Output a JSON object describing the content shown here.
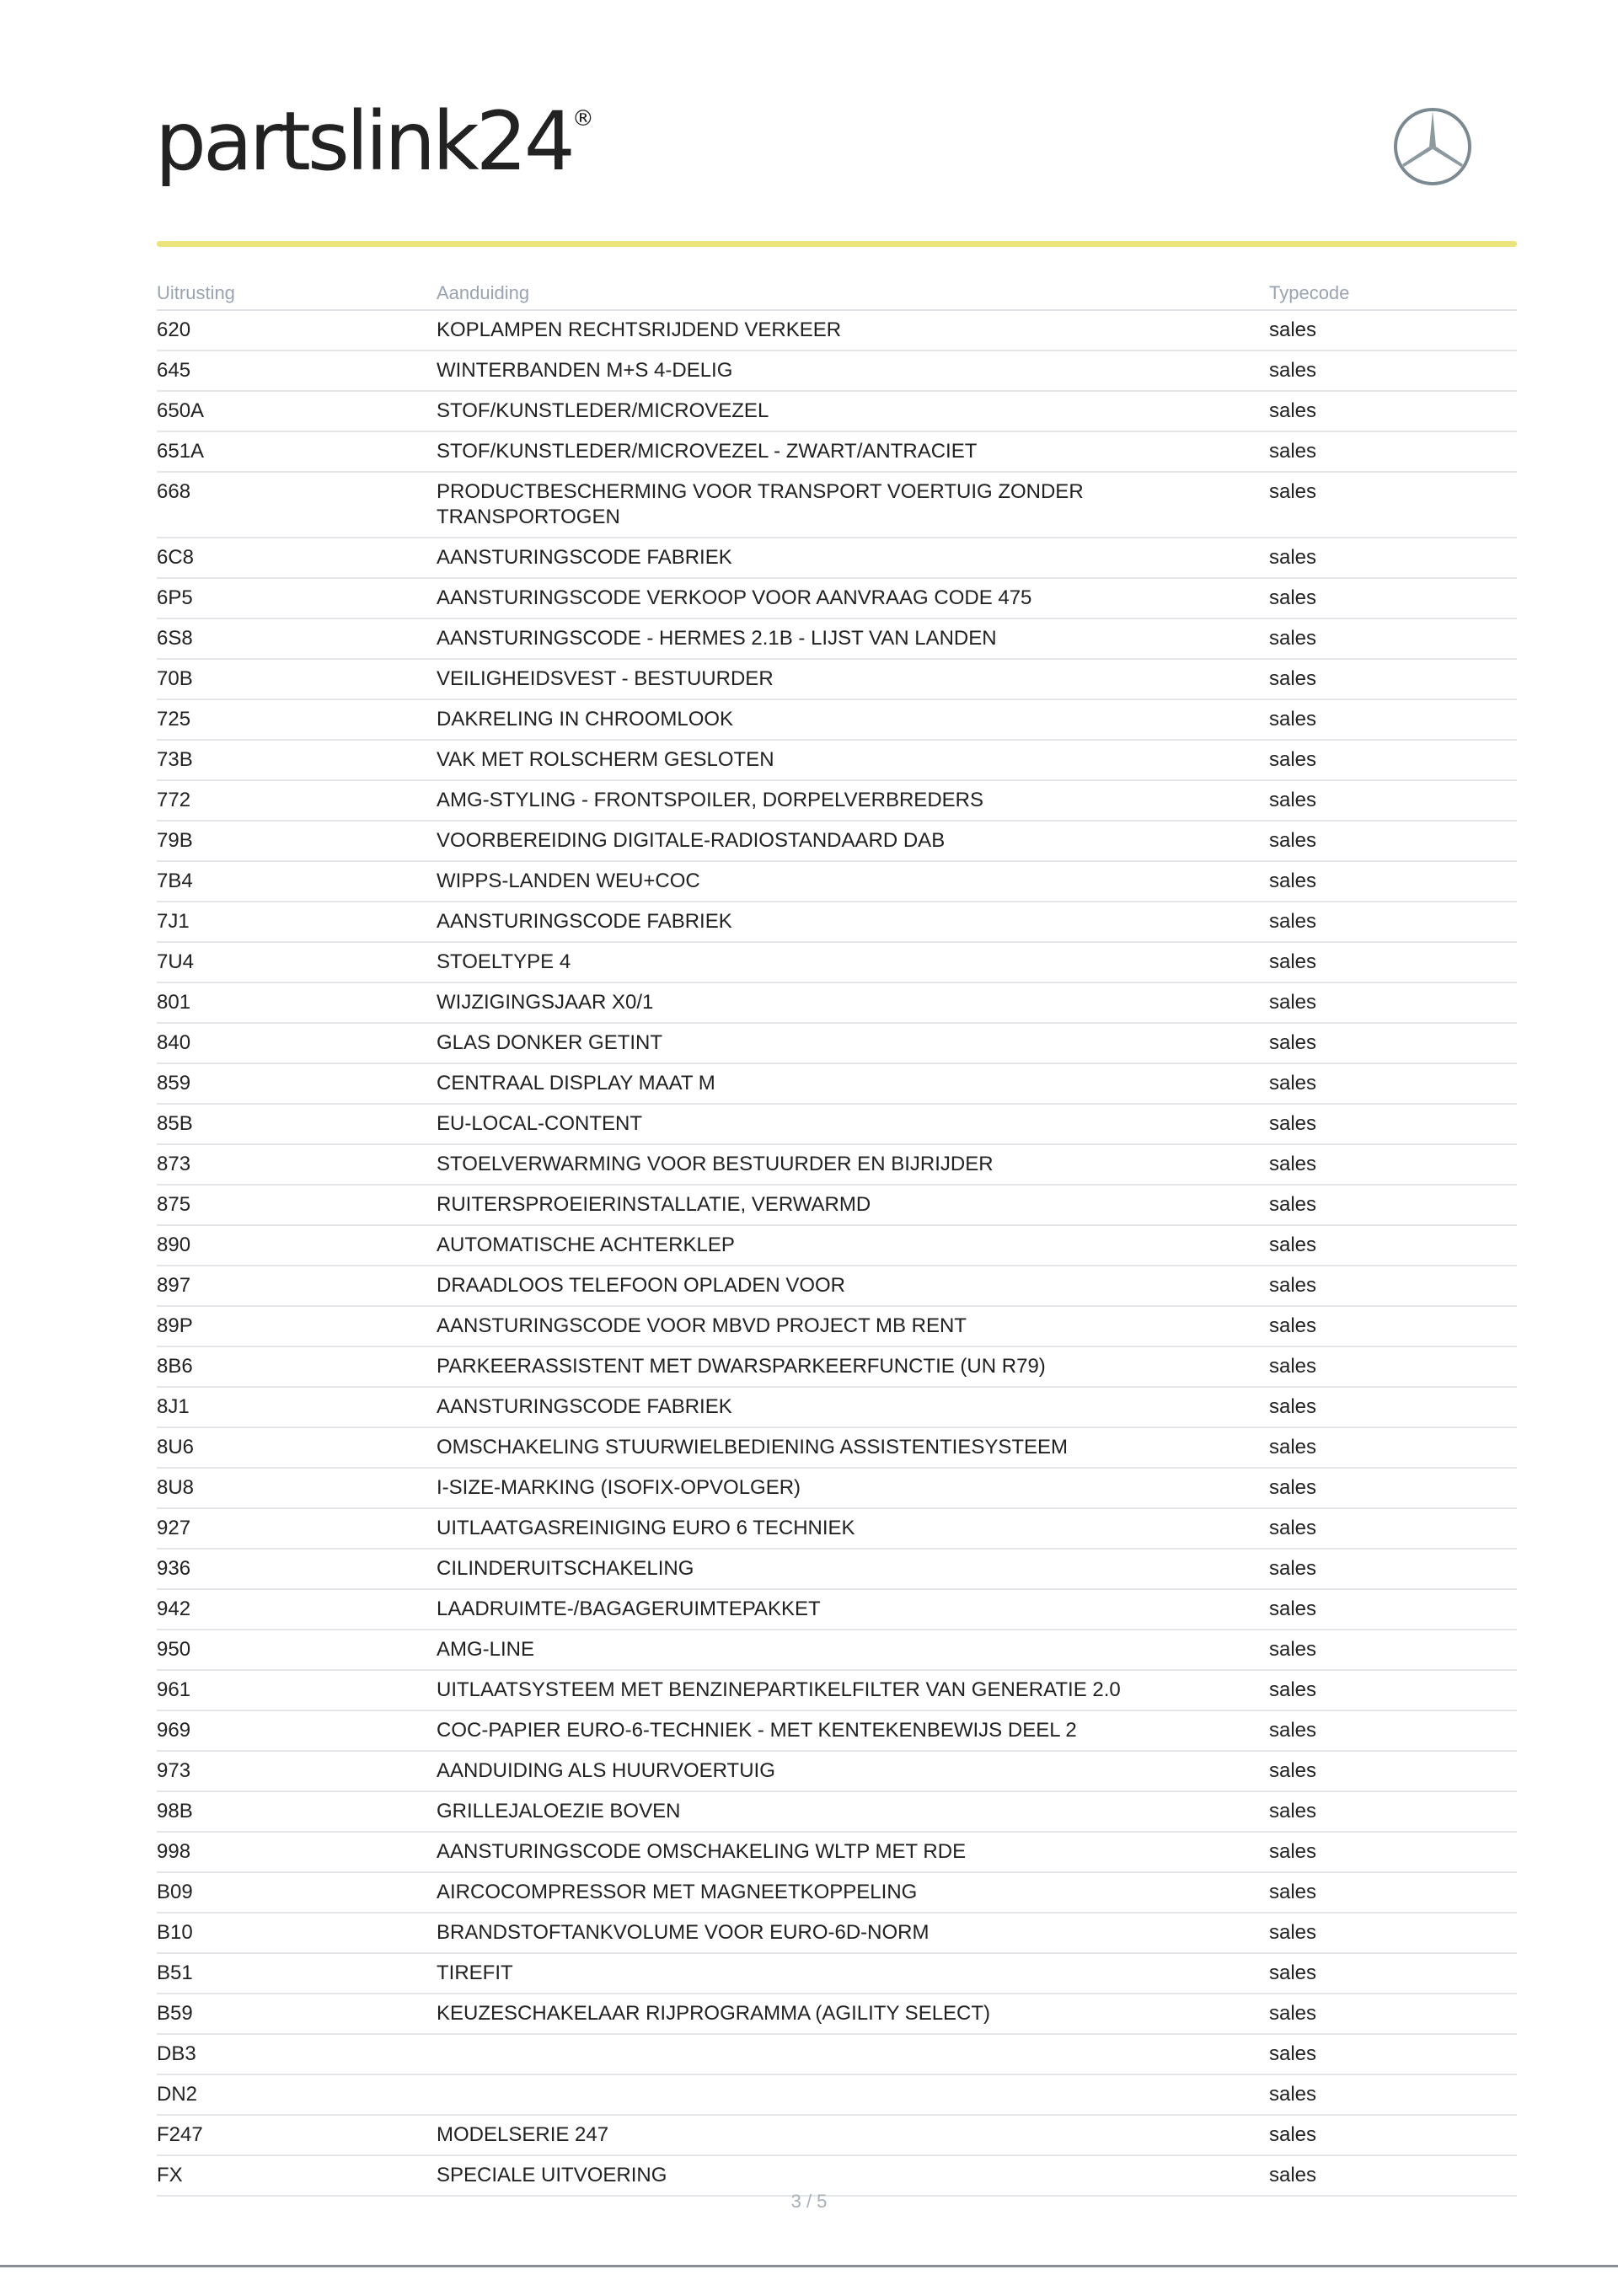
{
  "header": {
    "logo_text": "partslink24",
    "logo_registered": "®",
    "brand_icon": "mercedes-star-icon",
    "accent_color": "#ebe47a"
  },
  "table": {
    "columns": [
      "Uitrusting",
      "Aanduiding",
      "Typecode"
    ],
    "rows": [
      {
        "code": "620",
        "desc": "KOPLAMPEN RECHTSRIJDEND VERKEER",
        "type": "sales"
      },
      {
        "code": "645",
        "desc": "WINTERBANDEN M+S 4-DELIG",
        "type": "sales"
      },
      {
        "code": "650A",
        "desc": "STOF/KUNSTLEDER/MICROVEZEL",
        "type": "sales"
      },
      {
        "code": "651A",
        "desc": "STOF/KUNSTLEDER/MICROVEZEL - ZWART/ANTRACIET",
        "type": "sales"
      },
      {
        "code": "668",
        "desc": "PRODUCTBESCHERMING VOOR TRANSPORT VOERTUIG ZONDER TRANSPORTOGEN",
        "type": "sales"
      },
      {
        "code": "6C8",
        "desc": "AANSTURINGSCODE FABRIEK",
        "type": "sales"
      },
      {
        "code": "6P5",
        "desc": "AANSTURINGSCODE VERKOOP VOOR AANVRAAG CODE 475",
        "type": "sales"
      },
      {
        "code": "6S8",
        "desc": "AANSTURINGSCODE - HERMES 2.1B - LIJST VAN LANDEN",
        "type": "sales"
      },
      {
        "code": "70B",
        "desc": "VEILIGHEIDSVEST - BESTUURDER",
        "type": "sales"
      },
      {
        "code": "725",
        "desc": "DAKRELING IN CHROOMLOOK",
        "type": "sales"
      },
      {
        "code": "73B",
        "desc": "VAK MET ROLSCHERM GESLOTEN",
        "type": "sales"
      },
      {
        "code": "772",
        "desc": "AMG-STYLING - FRONTSPOILER, DORPELVERBREDERS",
        "type": "sales"
      },
      {
        "code": "79B",
        "desc": "VOORBEREIDING DIGITALE-RADIOSTANDAARD DAB",
        "type": "sales"
      },
      {
        "code": "7B4",
        "desc": "WIPPS-LANDEN WEU+COC",
        "type": "sales"
      },
      {
        "code": "7J1",
        "desc": "AANSTURINGSCODE FABRIEK",
        "type": "sales"
      },
      {
        "code": "7U4",
        "desc": "STOELTYPE 4",
        "type": "sales"
      },
      {
        "code": "801",
        "desc": "WIJZIGINGSJAAR X0/1",
        "type": "sales"
      },
      {
        "code": "840",
        "desc": "GLAS DONKER GETINT",
        "type": "sales"
      },
      {
        "code": "859",
        "desc": "CENTRAAL DISPLAY MAAT M",
        "type": "sales"
      },
      {
        "code": "85B",
        "desc": "EU-LOCAL-CONTENT",
        "type": "sales"
      },
      {
        "code": "873",
        "desc": "STOELVERWARMING VOOR BESTUURDER EN BIJRIJDER",
        "type": "sales"
      },
      {
        "code": "875",
        "desc": "RUITERSPROEIERINSTALLATIE, VERWARMD",
        "type": "sales"
      },
      {
        "code": "890",
        "desc": "AUTOMATISCHE ACHTERKLEP",
        "type": "sales"
      },
      {
        "code": "897",
        "desc": "DRAADLOOS TELEFOON OPLADEN VOOR",
        "type": "sales"
      },
      {
        "code": "89P",
        "desc": "AANSTURINGSCODE VOOR MBVD PROJECT MB RENT",
        "type": "sales"
      },
      {
        "code": "8B6",
        "desc": "PARKEERASSISTENT MET DWARSPARKEERFUNCTIE (UN R79)",
        "type": "sales"
      },
      {
        "code": "8J1",
        "desc": "AANSTURINGSCODE FABRIEK",
        "type": "sales"
      },
      {
        "code": "8U6",
        "desc": "OMSCHAKELING STUURWIELBEDIENING ASSISTENTIESYSTEEM",
        "type": "sales"
      },
      {
        "code": "8U8",
        "desc": "I-SIZE-MARKING (ISOFIX-OPVOLGER)",
        "type": "sales"
      },
      {
        "code": "927",
        "desc": "UITLAATGASREINIGING EURO 6 TECHNIEK",
        "type": "sales"
      },
      {
        "code": "936",
        "desc": "CILINDERUITSCHAKELING",
        "type": "sales"
      },
      {
        "code": "942",
        "desc": "LAADRUIMTE-/BAGAGERUIMTEPAKKET",
        "type": "sales"
      },
      {
        "code": "950",
        "desc": "AMG-LINE",
        "type": "sales"
      },
      {
        "code": "961",
        "desc": "UITLAATSYSTEEM MET BENZINEPARTIKELFILTER VAN GENERATIE 2.0",
        "type": "sales"
      },
      {
        "code": "969",
        "desc": "COC-PAPIER EURO-6-TECHNIEK - MET KENTEKENBEWIJS DEEL 2",
        "type": "sales"
      },
      {
        "code": "973",
        "desc": "AANDUIDING ALS HUURVOERTUIG",
        "type": "sales"
      },
      {
        "code": "98B",
        "desc": "GRILLEJALOEZIE BOVEN",
        "type": "sales"
      },
      {
        "code": "998",
        "desc": "AANSTURINGSCODE OMSCHAKELING WLTP MET RDE",
        "type": "sales"
      },
      {
        "code": "B09",
        "desc": "AIRCOCOMPRESSOR MET MAGNEETKOPPELING",
        "type": "sales"
      },
      {
        "code": "B10",
        "desc": "BRANDSTOFTANKVOLUME VOOR EURO-6D-NORM",
        "type": "sales"
      },
      {
        "code": "B51",
        "desc": "TIREFIT",
        "type": "sales"
      },
      {
        "code": "B59",
        "desc": "KEUZESCHAKELAAR RIJPROGRAMMA (AGILITY SELECT)",
        "type": "sales"
      },
      {
        "code": "DB3",
        "desc": "",
        "type": "sales"
      },
      {
        "code": "DN2",
        "desc": "",
        "type": "sales"
      },
      {
        "code": "F247",
        "desc": "MODELSERIE 247",
        "type": "sales"
      },
      {
        "code": "FX",
        "desc": "SPECIALE UITVOERING",
        "type": "sales"
      }
    ]
  },
  "footer": {
    "page": "3 / 5"
  }
}
